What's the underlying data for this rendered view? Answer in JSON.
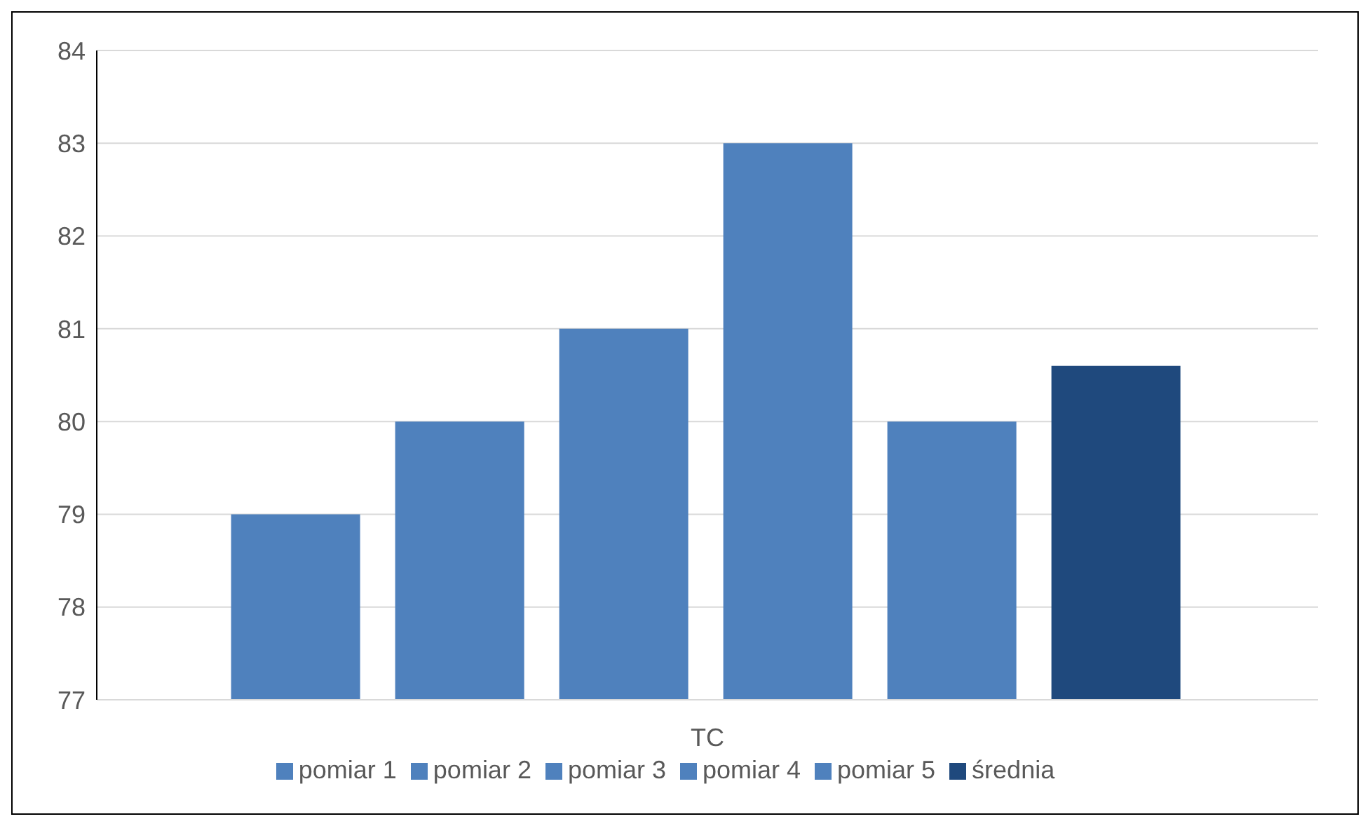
{
  "chart_data": {
    "type": "bar",
    "categories": [
      "TC"
    ],
    "series": [
      {
        "name": "pomiar 1",
        "color": "#4f81bd",
        "values": [
          79
        ]
      },
      {
        "name": "pomiar 2",
        "color": "#4f81bd",
        "values": [
          80
        ]
      },
      {
        "name": "pomiar 3",
        "color": "#4f81bd",
        "values": [
          81
        ]
      },
      {
        "name": "pomiar 4",
        "color": "#4f81bd",
        "values": [
          83
        ]
      },
      {
        "name": "pomiar 5",
        "color": "#4f81bd",
        "values": [
          80
        ]
      },
      {
        "name": "średnia",
        "color": "#1f497d",
        "values": [
          80.6
        ]
      }
    ],
    "ylim": [
      77,
      84
    ],
    "yticks": [
      77,
      78,
      79,
      80,
      81,
      82,
      83,
      84
    ],
    "grid": "y",
    "legend": "bottom"
  }
}
